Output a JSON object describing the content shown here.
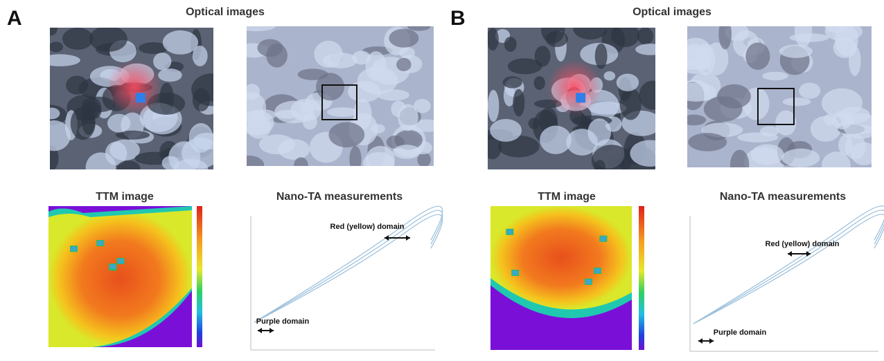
{
  "panels": [
    {
      "label": "A",
      "optical_title": "Optical images",
      "ttm_title": "TTM image",
      "nanota_title": "Nano-TA measurements",
      "red_domain": "Red (yellow) domain",
      "purple_domain": "Purple domain"
    },
    {
      "label": "B",
      "optical_title": "Optical images",
      "ttm_title": "TTM image",
      "nanota_title": "Nano-TA measurements",
      "red_domain": "Red (yellow) domain",
      "purple_domain": "Purple domain"
    }
  ]
}
